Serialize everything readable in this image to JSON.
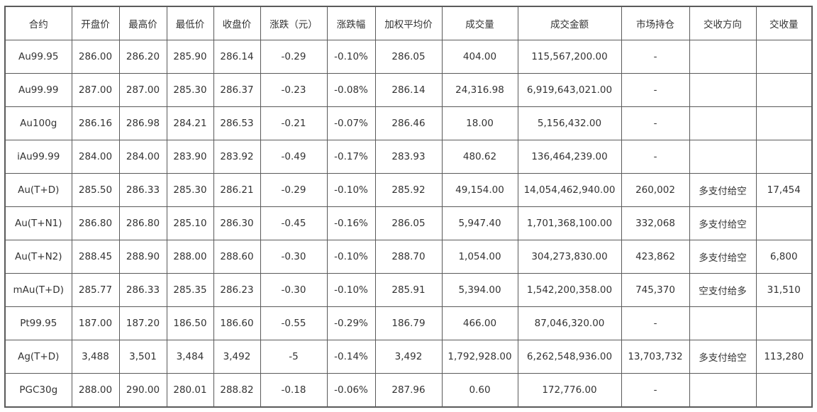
{
  "table": {
    "headers": [
      "合约",
      "开盘价",
      "最高价",
      "最低价",
      "收盘价",
      "涨跌（元）",
      "涨跌幅",
      "加权平均价",
      "成交量",
      "成交金额",
      "市场持仓",
      "交收方向",
      "交收量"
    ],
    "rows": [
      [
        "Au99.95",
        "286.00",
        "286.20",
        "285.90",
        "286.14",
        "-0.29",
        "-0.10%",
        "286.05",
        "404.00",
        "115,567,200.00",
        "-",
        "",
        ""
      ],
      [
        "Au99.99",
        "287.00",
        "287.00",
        "285.30",
        "286.37",
        "-0.23",
        "-0.08%",
        "286.14",
        "24,316.98",
        "6,919,643,021.00",
        "-",
        "",
        ""
      ],
      [
        "Au100g",
        "286.16",
        "286.98",
        "284.21",
        "286.53",
        "-0.21",
        "-0.07%",
        "286.46",
        "18.00",
        "5,156,432.00",
        "-",
        "",
        ""
      ],
      [
        "iAu99.99",
        "284.00",
        "284.00",
        "283.90",
        "283.92",
        "-0.49",
        "-0.17%",
        "283.93",
        "480.62",
        "136,464,239.00",
        "-",
        "",
        ""
      ],
      [
        "Au(T+D)",
        "285.50",
        "286.33",
        "285.30",
        "286.21",
        "-0.29",
        "-0.10%",
        "285.92",
        "49,154.00",
        "14,054,462,940.00",
        "260,002",
        "多支付给空",
        "17,454"
      ],
      [
        "Au(T+N1)",
        "286.80",
        "286.80",
        "285.10",
        "286.30",
        "-0.45",
        "-0.16%",
        "286.05",
        "5,947.40",
        "1,701,368,100.00",
        "332,068",
        "多支付给空",
        ""
      ],
      [
        "Au(T+N2)",
        "288.45",
        "288.90",
        "288.00",
        "288.60",
        "-0.30",
        "-0.10%",
        "288.70",
        "1,054.00",
        "304,273,830.00",
        "423,862",
        "多支付给空",
        "6,800"
      ],
      [
        "mAu(T+D)",
        "285.77",
        "286.33",
        "285.35",
        "286.23",
        "-0.30",
        "-0.10%",
        "285.91",
        "5,394.00",
        "1,542,200,358.00",
        "745,370",
        "空支付给多",
        "31,510"
      ],
      [
        "Pt99.95",
        "187.00",
        "187.20",
        "186.50",
        "186.60",
        "-0.55",
        "-0.29%",
        "186.79",
        "466.00",
        "87,046,320.00",
        "-",
        "",
        ""
      ],
      [
        "Ag(T+D)",
        "3,488",
        "3,501",
        "3,484",
        "3,492",
        "-5",
        "-0.14%",
        "3,492",
        "1,792,928.00",
        "6,262,548,936.00",
        "13,703,732",
        "多支付给空",
        "113,280"
      ],
      [
        "PGC30g",
        "288.00",
        "290.00",
        "280.01",
        "288.82",
        "-0.18",
        "-0.06%",
        "287.96",
        "0.60",
        "172,776.00",
        "-",
        "",
        ""
      ]
    ]
  }
}
